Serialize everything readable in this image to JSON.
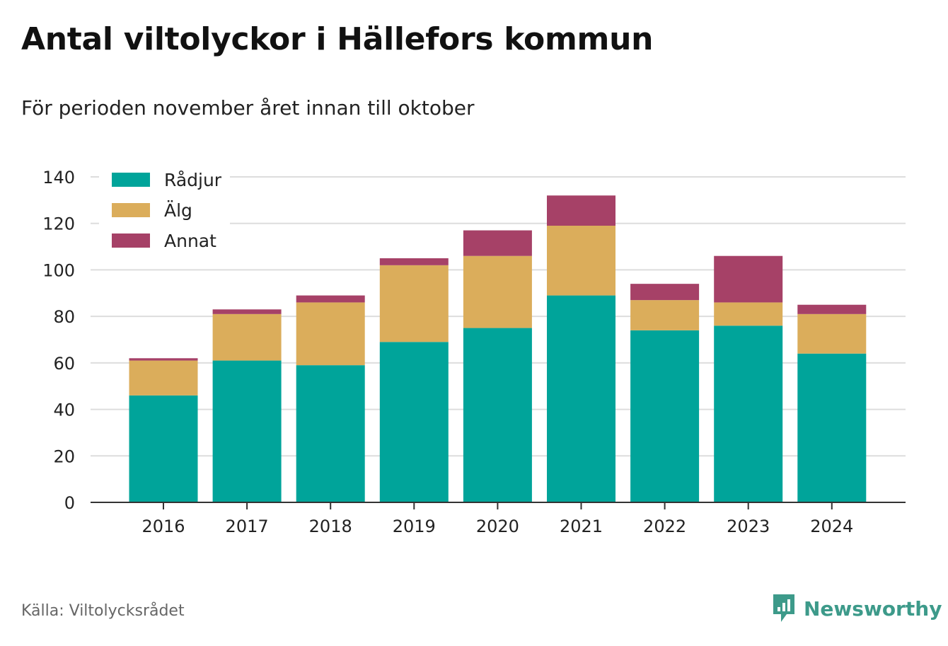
{
  "title": "Antal viltolyckor i Hällefors kommun",
  "subtitle": "För perioden november året innan till oktober",
  "source": "Källa: Viltolycksrådet",
  "brand": {
    "name": "Newsworthy",
    "icon": "newsworthy-logo-icon",
    "color": "#3d9a8a"
  },
  "chart_data": {
    "type": "bar",
    "stacked": true,
    "categories": [
      "2016",
      "2017",
      "2018",
      "2019",
      "2020",
      "2021",
      "2022",
      "2023",
      "2024"
    ],
    "series": [
      {
        "name": "Rådjur",
        "color": "#00a49a",
        "values": [
          46,
          61,
          59,
          69,
          75,
          89,
          74,
          76,
          64
        ]
      },
      {
        "name": "Älg",
        "color": "#dbad5b",
        "values": [
          15,
          20,
          27,
          33,
          31,
          30,
          13,
          10,
          17
        ]
      },
      {
        "name": "Annat",
        "color": "#a64167",
        "values": [
          1,
          2,
          3,
          3,
          11,
          13,
          7,
          20,
          4
        ]
      }
    ],
    "title": "Antal viltolyckor i Hällefors kommun",
    "subtitle": "För perioden november året innan till oktober",
    "xlabel": "",
    "ylabel": "",
    "ylim": [
      0,
      140
    ],
    "yticks": [
      0,
      20,
      40,
      60,
      80,
      100,
      120,
      140
    ],
    "grid": true,
    "legend_position": "top-left"
  }
}
